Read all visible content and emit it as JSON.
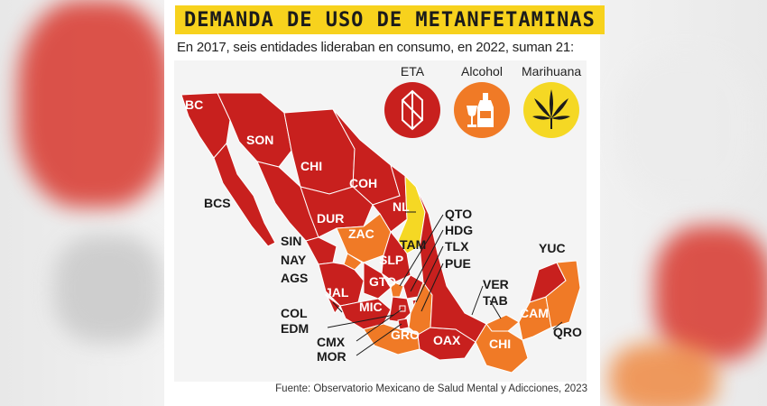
{
  "header": {
    "title": "DEMANDA DE USO DE METANFETAMINAS",
    "subtitle": "En 2017, seis entidades lideraban en consumo, en 2022, suman 21:"
  },
  "legend": [
    {
      "label": "ETA",
      "color": "#c8201e",
      "icon": "crystal-icon"
    },
    {
      "label": "Alcohol",
      "color": "#f07a26",
      "icon": "bottle-glass-icon"
    },
    {
      "label": "Marihuana",
      "color": "#f5d824",
      "icon": "cannabis-leaf-icon"
    }
  ],
  "colors": {
    "eta": "#c8201e",
    "alcohol": "#f07a26",
    "marihuana": "#f5d824"
  },
  "states": {
    "BC": "BC",
    "SON": "SON",
    "CHI": "CHI",
    "COH": "COH",
    "BCS": "BCS",
    "NL": "NL",
    "DUR": "DUR",
    "ZAC": "ZAC",
    "TAM": "TAM",
    "SIN": "SIN",
    "NAY": "NAY",
    "AGS": "AGS",
    "SLP": "SLP",
    "GTO": "GTO",
    "JAL": "JAL",
    "MIC": "MIC",
    "COL": "COL",
    "EDM": "EDM",
    "CMX": "CMX",
    "MOR": "MOR",
    "GRO": "GRO",
    "OAX": "OAX",
    "CHIS": "CHI",
    "QTO": "QTO",
    "HDG": "HDG",
    "TLX": "TLX",
    "PUE": "PUE",
    "VER": "VER",
    "TAB": "TAB",
    "YUC": "YUC",
    "CAM": "CAM",
    "QRO": "QRO"
  },
  "source": "Fuente: Observatorio Mexicano de Salud Mental y Adicciones, 2023"
}
